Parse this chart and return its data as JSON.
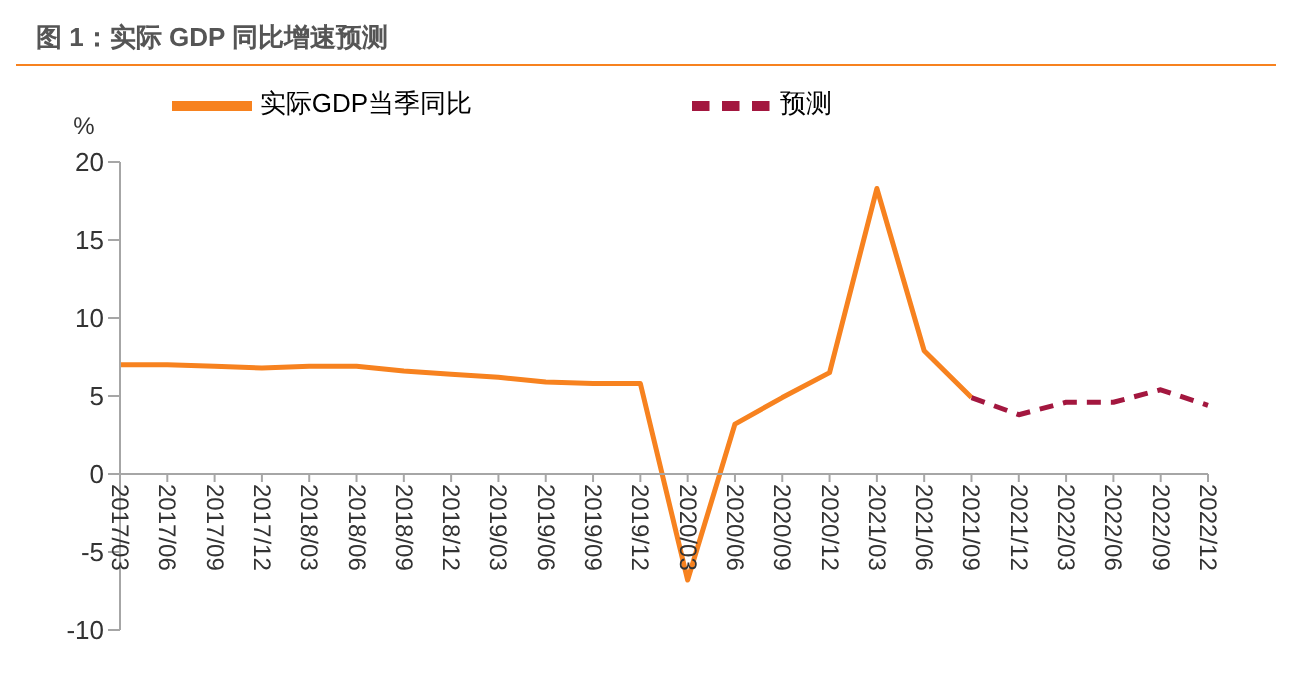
{
  "chart_data": {
    "type": "line",
    "title": "图 1：实际 GDP 同比增速预测",
    "ylabel": "%",
    "categories": [
      "2017/03",
      "2017/06",
      "2017/09",
      "2017/12",
      "2018/03",
      "2018/06",
      "2018/09",
      "2018/12",
      "2019/03",
      "2019/06",
      "2019/09",
      "2019/12",
      "2020/03",
      "2020/06",
      "2020/09",
      "2020/12",
      "2021/03",
      "2021/06",
      "2021/09",
      "2021/12",
      "2022/03",
      "2022/06",
      "2022/09",
      "2022/12"
    ],
    "series": [
      {
        "name": "实际GDP当季同比",
        "color": "#f7821f",
        "line_style": "solid",
        "values": [
          7.0,
          7.0,
          6.9,
          6.8,
          6.9,
          6.9,
          6.6,
          6.4,
          6.2,
          5.9,
          5.8,
          5.8,
          -6.8,
          3.2,
          4.9,
          6.5,
          18.3,
          7.9,
          4.9,
          null,
          null,
          null,
          null,
          null
        ]
      },
      {
        "name": "预测",
        "color": "#a3173f",
        "line_style": "dashed",
        "values": [
          null,
          null,
          null,
          null,
          null,
          null,
          null,
          null,
          null,
          null,
          null,
          null,
          null,
          null,
          null,
          null,
          null,
          null,
          4.9,
          3.8,
          4.6,
          4.6,
          5.4,
          4.4
        ]
      }
    ],
    "ylim": [
      -10,
      20
    ],
    "yticks": [
      -10,
      -5,
      0,
      5,
      10,
      15,
      20
    ],
    "grid": false,
    "legend": "top",
    "marker": "none"
  }
}
